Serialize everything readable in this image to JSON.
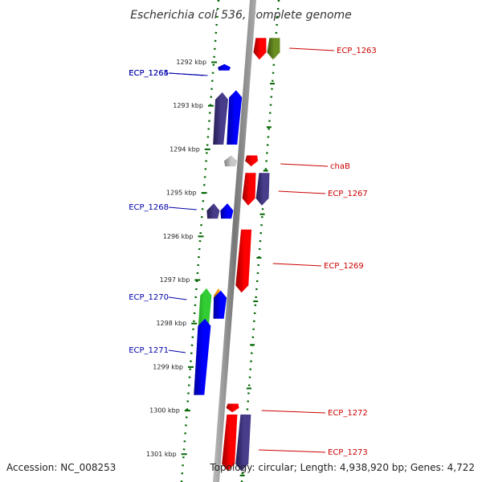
{
  "title": "Escherichia coli 536, complete genome",
  "accession": "Accession: NC_008253",
  "topology": "Topology: circular; Length: 4,938,920 bp; Genes: 4,722",
  "ticks": [
    "1292 kbp",
    "1293 kbp",
    "1294 kbp",
    "1295 kbp",
    "1296 kbp",
    "1297 kbp",
    "1298 kbp",
    "1299 kbp",
    "1300 kbp",
    "1301 kbp"
  ],
  "genes": [
    {
      "label": "ECP_1263",
      "strand": "reverse",
      "color": "#ff0000",
      "shade": "#990000",
      "start": 1291.45,
      "end": 1291.95
    },
    {
      "label": "",
      "strand": "reverse",
      "color": "#6b8e23",
      "shade": "#3a5212",
      "start": 1291.45,
      "end": 1291.95
    },
    {
      "label": "ECP_1264",
      "strand": "forward",
      "color": "#0000ff",
      "shade": "#000099",
      "start": 1292.05,
      "end": 1292.2
    },
    {
      "label": "ECP_1265",
      "strand": "forward",
      "color": "#483d8b",
      "shade": "#241d52",
      "start": 1292.7,
      "end": 1293.9
    },
    {
      "label": "",
      "strand": "forward",
      "color": "#0000ff",
      "shade": "#000099",
      "start": 1292.65,
      "end": 1293.9
    },
    {
      "label": "chaB",
      "strand": "reverse",
      "color": "#ff0000",
      "shade": "#990000",
      "start": 1294.15,
      "end": 1294.4
    },
    {
      "label": "",
      "strand": "forward",
      "color": "#c8c8c8",
      "shade": "#808080",
      "start": 1294.15,
      "end": 1294.4
    },
    {
      "label": "ECP_1267",
      "strand": "reverse",
      "color": "#ff0000",
      "shade": "#990000",
      "start": 1294.55,
      "end": 1295.3
    },
    {
      "label": "",
      "strand": "reverse",
      "color": "#483d8b",
      "shade": "#241d52",
      "start": 1294.55,
      "end": 1295.3
    },
    {
      "label": "ECP_1268",
      "strand": "forward",
      "color": "#483d8b",
      "shade": "#241d52",
      "start": 1295.25,
      "end": 1295.6
    },
    {
      "label": "",
      "strand": "forward",
      "color": "#0000ff",
      "shade": "#000099",
      "start": 1295.25,
      "end": 1295.6
    },
    {
      "label": "ECP_1269",
      "strand": "reverse",
      "color": "#ff0000",
      "shade": "#990000",
      "start": 1295.85,
      "end": 1297.3
    },
    {
      "label": "ECP_1270",
      "strand": "forward",
      "color": "#32cd32",
      "shade": "#1b7a1b",
      "start": 1297.2,
      "end": 1299.65
    },
    {
      "label": "",
      "strand": "forward",
      "color": "#ffa500",
      "shade": "#b36b00",
      "start": 1297.2,
      "end": 1297.85
    },
    {
      "label": "",
      "strand": "forward",
      "color": "#0000ff",
      "shade": "#000099",
      "start": 1297.25,
      "end": 1297.9
    },
    {
      "label": "ECP_1271",
      "strand": "forward",
      "color": "#0000ff",
      "shade": "#000099",
      "start": 1297.9,
      "end": 1299.65
    },
    {
      "label": "ECP_1272",
      "strand": "reverse",
      "color": "#ff0000",
      "shade": "#990000",
      "start": 1299.85,
      "end": 1300.05
    },
    {
      "label": "ECP_1273",
      "strand": "reverse",
      "color": "#ff0000",
      "shade": "#990000",
      "start": 1300.1,
      "end": 1301.4
    },
    {
      "label": "",
      "strand": "reverse",
      "color": "#483d8b",
      "shade": "#241d52",
      "start": 1300.1,
      "end": 1301.4
    }
  ],
  "colors": {
    "forward_label": "#0000aa",
    "reverse_label": "#cc0000",
    "backbone": "#888888",
    "tick": "#006400"
  }
}
